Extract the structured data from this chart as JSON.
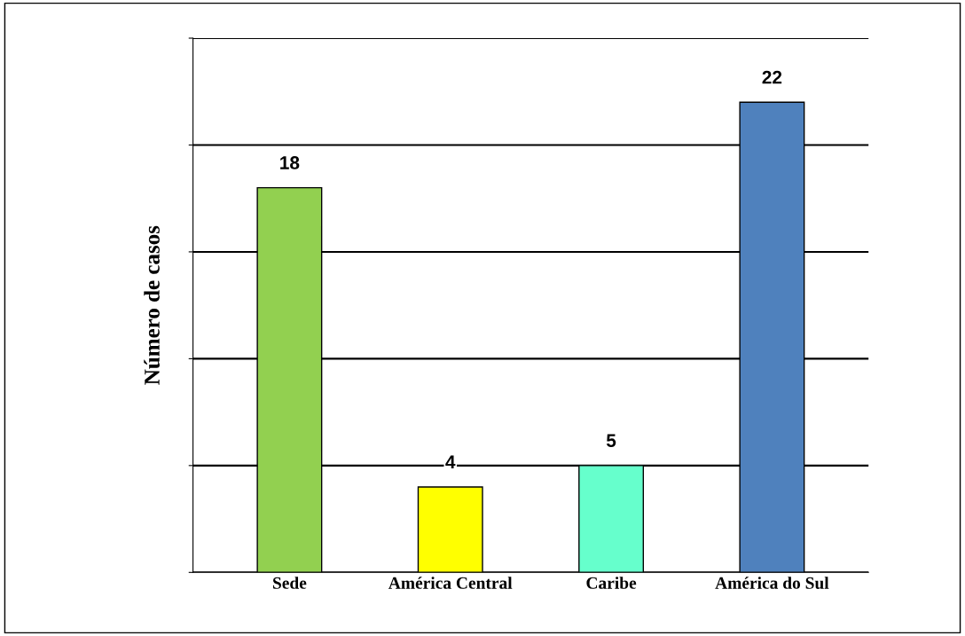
{
  "chart_data": {
    "type": "bar",
    "ylabel": "Número de casos",
    "categories": [
      "Sede",
      "América Central",
      "Caribe",
      "América do Sul"
    ],
    "values": [
      18,
      4,
      5,
      22
    ],
    "colors": [
      "#92d050",
      "#ffff00",
      "#66ffcc",
      "#4f81bd"
    ],
    "ylim": [
      0,
      25
    ],
    "yticks": [
      {
        "value": 0,
        "label": null
      },
      {
        "value": 5,
        "label": null
      },
      {
        "value": 10,
        "label": null
      },
      {
        "value": 15,
        "label": null
      },
      {
        "value": 20,
        "label": null
      },
      {
        "value": 25,
        "label": null
      }
    ],
    "tick_labels": "x",
    "grid": "y",
    "data_labels": true
  }
}
